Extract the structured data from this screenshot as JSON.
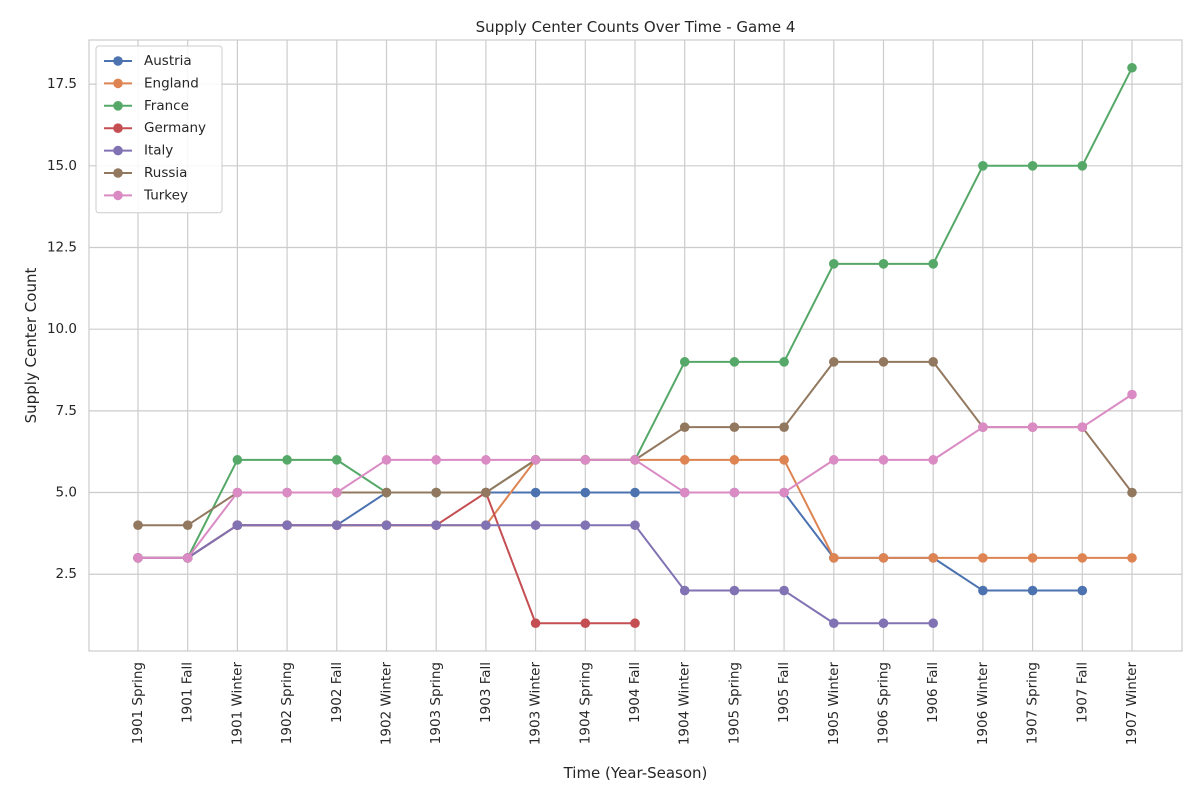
{
  "chart_data": {
    "type": "line",
    "title": "Supply Center Counts Over Time - Game 4",
    "xlabel": "Time (Year-Season)",
    "ylabel": "Supply Center Count",
    "ylim": [
      0.15,
      18.85
    ],
    "yticks": [
      2.5,
      5.0,
      7.5,
      10.0,
      12.5,
      15.0,
      17.5
    ],
    "ytick_labels": [
      "2.5",
      "5.0",
      "7.5",
      "10.0",
      "12.5",
      "15.0",
      "17.5"
    ],
    "grid": true,
    "legend_position": "top-left",
    "categories": [
      "1901 Spring",
      "1901 Fall",
      "1901 Winter",
      "1902 Spring",
      "1902 Fall",
      "1902 Winter",
      "1903 Spring",
      "1903 Fall",
      "1903 Winter",
      "1904 Spring",
      "1904 Fall",
      "1904 Winter",
      "1905 Spring",
      "1905 Fall",
      "1905 Winter",
      "1906 Spring",
      "1906 Fall",
      "1906 Winter",
      "1907 Spring",
      "1907 Fall",
      "1907 Winter"
    ],
    "series": [
      {
        "name": "Austria",
        "color": "#4c72b0",
        "values": [
          3,
          3,
          4,
          4,
          4,
          5,
          5,
          5,
          5,
          5,
          5,
          5,
          5,
          5,
          3,
          3,
          3,
          2,
          2,
          2,
          null
        ]
      },
      {
        "name": "England",
        "color": "#dd8452",
        "values": [
          3,
          3,
          4,
          4,
          4,
          4,
          4,
          4,
          6,
          6,
          6,
          6,
          6,
          6,
          3,
          3,
          3,
          3,
          3,
          3,
          3
        ]
      },
      {
        "name": "France",
        "color": "#55a868",
        "values": [
          3,
          3,
          6,
          6,
          6,
          5,
          5,
          5,
          6,
          6,
          6,
          9,
          9,
          9,
          12,
          12,
          12,
          15,
          15,
          15,
          18
        ]
      },
      {
        "name": "Germany",
        "color": "#c44e52",
        "values": [
          3,
          3,
          4,
          4,
          4,
          4,
          4,
          5,
          1,
          1,
          1,
          null,
          null,
          null,
          null,
          null,
          null,
          null,
          null,
          null,
          null
        ]
      },
      {
        "name": "Italy",
        "color": "#8172b3",
        "values": [
          3,
          3,
          4,
          4,
          4,
          4,
          4,
          4,
          4,
          4,
          4,
          2,
          2,
          2,
          1,
          1,
          1,
          null,
          null,
          null,
          null
        ]
      },
      {
        "name": "Russia",
        "color": "#937860",
        "values": [
          4,
          4,
          5,
          5,
          5,
          5,
          5,
          5,
          6,
          6,
          6,
          7,
          7,
          7,
          9,
          9,
          9,
          7,
          7,
          7,
          5
        ]
      },
      {
        "name": "Turkey",
        "color": "#da8bc3",
        "values": [
          3,
          3,
          5,
          5,
          5,
          6,
          6,
          6,
          6,
          6,
          6,
          5,
          5,
          5,
          6,
          6,
          6,
          7,
          7,
          7,
          8
        ]
      }
    ]
  }
}
